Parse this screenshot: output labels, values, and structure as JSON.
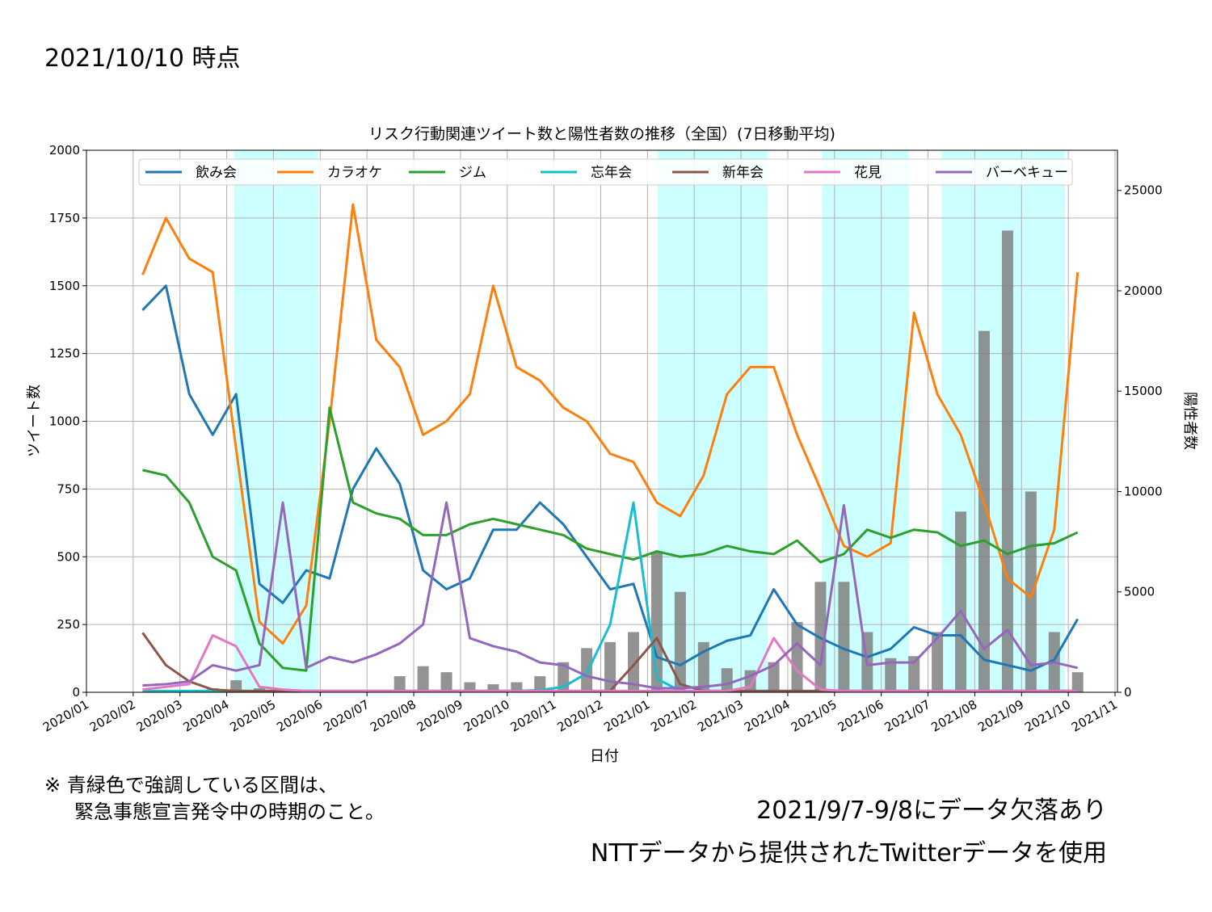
{
  "header": "2021/10/10 時点",
  "notes": [
    "※ 青緑色で強調している区間は、",
    "緊急事態宣言発令中の時期のこと。"
  ],
  "footnotes": [
    "2021/9/7-9/8にデータ欠落あり",
    "NTTデータから提供されたTwitterデータを使用"
  ],
  "chart_data": {
    "type": "line",
    "title": "リスク行動関連ツイート数と陽性者数の推移（全国）(7日移動平均)",
    "xlabel": "日付",
    "ylabel": "ツイート数",
    "y2label": "陽性者数",
    "xlim": [
      0,
      22
    ],
    "xticks": [
      {
        "value": 0,
        "label": "2020/01"
      },
      {
        "value": 1,
        "label": "2020/02"
      },
      {
        "value": 2,
        "label": "2020/03"
      },
      {
        "value": 3,
        "label": "2020/04"
      },
      {
        "value": 4,
        "label": "2020/05"
      },
      {
        "value": 5,
        "label": "2020/06"
      },
      {
        "value": 6,
        "label": "2020/07"
      },
      {
        "value": 7,
        "label": "2020/08"
      },
      {
        "value": 8,
        "label": "2020/09"
      },
      {
        "value": 9,
        "label": "2020/10"
      },
      {
        "value": 10,
        "label": "2020/11"
      },
      {
        "value": 11,
        "label": "2020/12"
      },
      {
        "value": 12,
        "label": "2021/01"
      },
      {
        "value": 13,
        "label": "2021/02"
      },
      {
        "value": 14,
        "label": "2021/03"
      },
      {
        "value": 15,
        "label": "2021/04"
      },
      {
        "value": 16,
        "label": "2021/05"
      },
      {
        "value": 17,
        "label": "2021/06"
      },
      {
        "value": 18,
        "label": "2021/07"
      },
      {
        "value": 19,
        "label": "2021/08"
      },
      {
        "value": 20,
        "label": "2021/09"
      },
      {
        "value": 21,
        "label": "2021/10"
      },
      {
        "value": 22,
        "label": "2021/11"
      }
    ],
    "ylim": [
      0,
      2000
    ],
    "yticks": [
      0,
      250,
      500,
      750,
      1000,
      1250,
      1500,
      1750,
      2000
    ],
    "y2lim": [
      0,
      27000
    ],
    "y2ticks": [
      0,
      5000,
      10000,
      15000,
      20000,
      25000
    ],
    "grid": true,
    "legend": "upper center",
    "highlight_color": "#ccffff",
    "highlight_spans": [
      [
        3.16,
        4.96
      ],
      [
        12.22,
        14.57
      ],
      [
        15.73,
        17.59
      ],
      [
        18.29,
        20.93
      ]
    ],
    "x": [
      1.2,
      1.7,
      2.2,
      2.7,
      3.2,
      3.7,
      4.2,
      4.7,
      5.2,
      5.7,
      6.2,
      6.7,
      7.2,
      7.7,
      8.2,
      8.7,
      9.2,
      9.7,
      10.2,
      10.7,
      11.2,
      11.7,
      12.2,
      12.7,
      13.2,
      13.7,
      14.2,
      14.7,
      15.2,
      15.7,
      16.2,
      16.7,
      17.2,
      17.7,
      18.2,
      18.7,
      19.2,
      19.7,
      20.2,
      20.7,
      21.2
    ],
    "bars": {
      "axis": "y2",
      "color": "#808080",
      "values": [
        0,
        0,
        50,
        200,
        600,
        200,
        50,
        30,
        30,
        50,
        100,
        800,
        1300,
        1000,
        500,
        400,
        500,
        800,
        1500,
        2200,
        2500,
        3000,
        7000,
        5000,
        2500,
        1200,
        1100,
        1500,
        3500,
        5500,
        5500,
        3000,
        1700,
        1800,
        3000,
        9000,
        18000,
        23000,
        10000,
        3000,
        1000
      ]
    },
    "series": [
      {
        "name": "飲み会",
        "color": "#1f77b4",
        "values": [
          1410,
          1500,
          1100,
          950,
          1100,
          400,
          330,
          450,
          420,
          750,
          900,
          770,
          450,
          380,
          420,
          600,
          600,
          700,
          620,
          500,
          380,
          400,
          130,
          100,
          150,
          190,
          210,
          380,
          250,
          200,
          160,
          130,
          160,
          240,
          210,
          210,
          120,
          100,
          80,
          120,
          270
        ]
      },
      {
        "name": "カラオケ",
        "color": "#ff7f0e",
        "values": [
          1540,
          1750,
          1600,
          1550,
          900,
          260,
          180,
          320,
          1000,
          1800,
          1300,
          1200,
          950,
          1000,
          1100,
          1500,
          1200,
          1150,
          1050,
          1000,
          880,
          850,
          700,
          650,
          800,
          1100,
          1200,
          1200,
          950,
          750,
          540,
          500,
          550,
          1400,
          1100,
          950,
          700,
          420,
          350,
          600,
          1550
        ]
      },
      {
        "name": "ジム",
        "color": "#2ca02c",
        "values": [
          820,
          800,
          700,
          500,
          450,
          180,
          90,
          80,
          1050,
          700,
          660,
          640,
          580,
          580,
          620,
          640,
          620,
          600,
          580,
          530,
          510,
          490,
          520,
          500,
          510,
          540,
          520,
          510,
          560,
          480,
          510,
          600,
          570,
          600,
          590,
          540,
          560,
          510,
          540,
          550,
          590
        ]
      },
      {
        "name": "忘年会",
        "color": "#17becf",
        "values": [
          5,
          5,
          5,
          5,
          5,
          5,
          5,
          5,
          5,
          5,
          5,
          5,
          5,
          5,
          5,
          5,
          5,
          8,
          20,
          70,
          250,
          700,
          50,
          5,
          5,
          5,
          5,
          5,
          5,
          5,
          5,
          5,
          5,
          5,
          5,
          5,
          5,
          5,
          5,
          5,
          5
        ]
      },
      {
        "name": "新年会",
        "color": "#8c564b",
        "values": [
          220,
          100,
          40,
          10,
          5,
          5,
          5,
          5,
          5,
          5,
          5,
          5,
          5,
          5,
          5,
          5,
          5,
          5,
          5,
          5,
          5,
          100,
          200,
          30,
          5,
          5,
          5,
          5,
          5,
          5,
          5,
          5,
          5,
          5,
          5,
          5,
          5,
          5,
          5,
          5,
          5
        ]
      },
      {
        "name": "花見",
        "color": "#e377c2",
        "values": [
          10,
          20,
          30,
          210,
          170,
          20,
          10,
          5,
          5,
          5,
          5,
          5,
          5,
          5,
          5,
          5,
          5,
          5,
          5,
          5,
          5,
          5,
          5,
          5,
          5,
          5,
          20,
          200,
          80,
          10,
          5,
          5,
          5,
          5,
          5,
          5,
          5,
          5,
          5,
          5,
          5
        ]
      },
      {
        "name": "バーベキュー",
        "color": "#9467bd",
        "values": [
          25,
          30,
          40,
          100,
          80,
          100,
          700,
          90,
          130,
          110,
          140,
          180,
          250,
          700,
          200,
          170,
          150,
          110,
          100,
          60,
          40,
          30,
          15,
          15,
          20,
          30,
          60,
          100,
          180,
          100,
          690,
          100,
          110,
          110,
          200,
          300,
          160,
          230,
          100,
          110,
          90
        ]
      }
    ]
  }
}
